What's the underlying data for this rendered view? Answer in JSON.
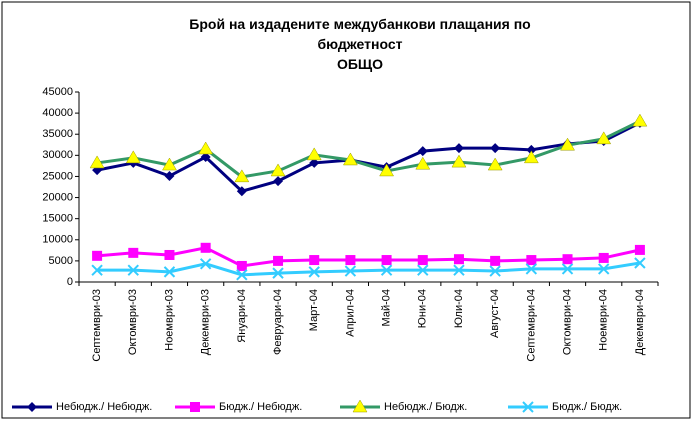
{
  "chart_data": {
    "type": "line",
    "title": "Брой на издадените междубанкови плащания по бюджетност",
    "subtitle": "ОБЩО",
    "categories": [
      "Септември-03",
      "Октомври-03",
      "Ноември-03",
      "Декември-03",
      "Януари-04",
      "Февруари-04",
      "Март-04",
      "Април-04",
      "Май-04",
      "Юни-04",
      "Юли-04",
      "Август-04",
      "Септември-04",
      "Октомври-04",
      "Ноември-04",
      "Декември-04"
    ],
    "series": [
      {
        "name": "Небюдж./ Небюдж.",
        "color": "#000080",
        "marker": "diamond",
        "marker_color": "#000080",
        "values": [
          26500,
          28200,
          25100,
          29600,
          21500,
          23900,
          28200,
          28900,
          27200,
          31000,
          31700,
          31700,
          31300,
          32700,
          33400,
          37700
        ]
      },
      {
        "name": "Бюдж./ Небюдж.",
        "color": "#ff00ff",
        "marker": "square",
        "marker_color": "#ff00ff",
        "values": [
          6200,
          6900,
          6400,
          8100,
          3800,
          5000,
          5200,
          5200,
          5200,
          5200,
          5400,
          5000,
          5200,
          5400,
          5700,
          7600
        ]
      },
      {
        "name": "Небюдж./ Бюдж.",
        "color": "#339966",
        "marker": "triangle",
        "marker_color": "#ffff00",
        "values": [
          28200,
          29400,
          27700,
          31500,
          24900,
          26300,
          30100,
          28900,
          26300,
          27900,
          28400,
          27700,
          29400,
          32400,
          33900,
          38100
        ]
      },
      {
        "name": "Бюдж./ Бюдж.",
        "color": "#33ccff",
        "marker": "x",
        "marker_color": "#33ccff",
        "values": [
          2800,
          2800,
          2400,
          4300,
          1700,
          2100,
          2400,
          2600,
          2800,
          2800,
          2800,
          2600,
          3100,
          3100,
          3100,
          4500
        ]
      }
    ],
    "ylim": [
      0,
      45000
    ],
    "yticks": [
      0,
      5000,
      10000,
      15000,
      20000,
      25000,
      30000,
      35000,
      40000,
      45000
    ],
    "legend": "bottom"
  }
}
